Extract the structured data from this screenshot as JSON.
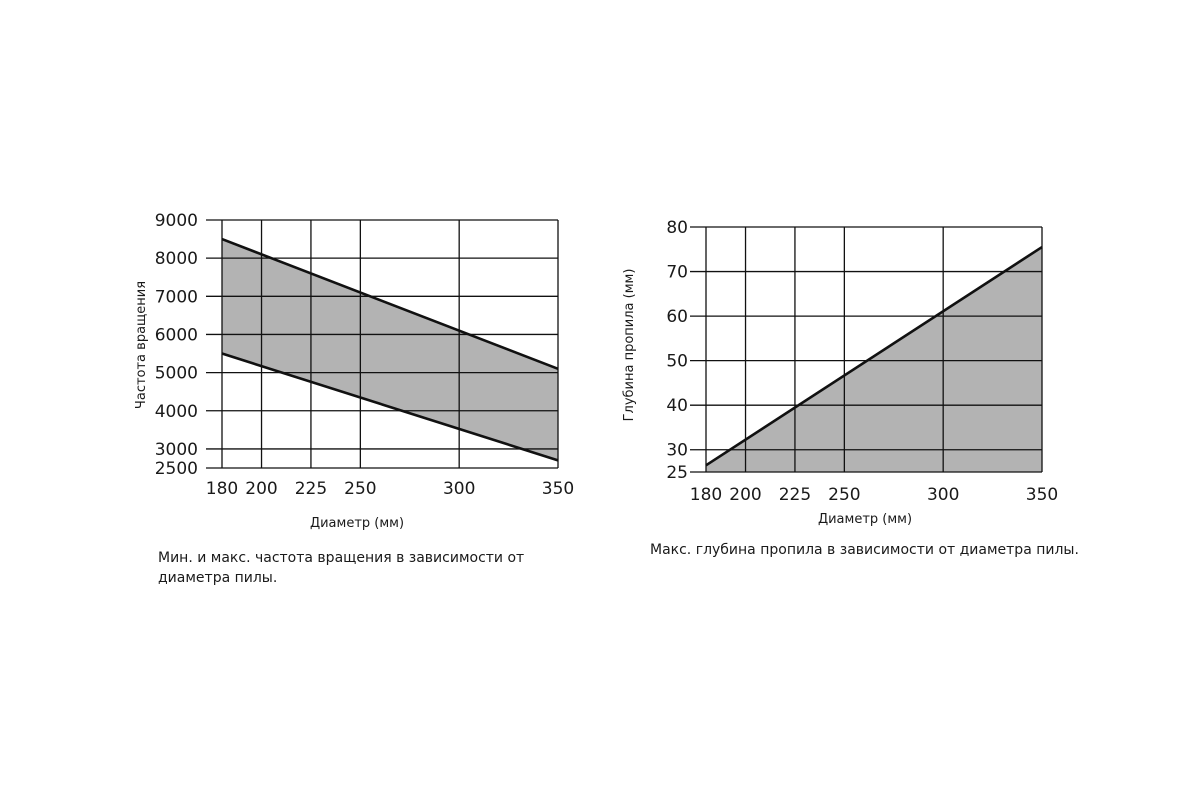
{
  "chart_data": [
    {
      "type": "area",
      "xlabel": "Диаметр (мм)",
      "ylabel": "Частота вращения",
      "caption": "Мин. и макс. частота вращения в зависимости от диаметра пилы.",
      "x_ticks": [
        180,
        200,
        225,
        250,
        300,
        350
      ],
      "y_ticks": [
        2500,
        3000,
        4000,
        5000,
        6000,
        7000,
        8000,
        9000
      ],
      "xlim": [
        180,
        350
      ],
      "ylim": [
        2500,
        9000
      ],
      "grid": true,
      "fill_color": "#b3b3b3",
      "line_color": "#111111",
      "series": [
        {
          "name": "",
          "x": [
            180,
            350
          ],
          "y": [
            8500,
            5100
          ]
        },
        {
          "name": "",
          "x": [
            180,
            350
          ],
          "y": [
            5500,
            2700
          ]
        }
      ]
    },
    {
      "type": "area",
      "xlabel": "Диаметр (мм)",
      "ylabel": "Глубина пропила (мм)",
      "caption": "Макс. глубина пропила в зависимости от диаметра пилы.",
      "x_ticks": [
        180,
        200,
        225,
        250,
        300,
        350
      ],
      "y_ticks": [
        25,
        30,
        40,
        50,
        60,
        70,
        80
      ],
      "xlim": [
        180,
        350
      ],
      "ylim": [
        25,
        80
      ],
      "grid": true,
      "fill_color": "#b3b3b3",
      "line_color": "#111111",
      "series": [
        {
          "name": "",
          "x": [
            180,
            350
          ],
          "y": [
            26.5,
            75.5
          ]
        }
      ]
    }
  ]
}
